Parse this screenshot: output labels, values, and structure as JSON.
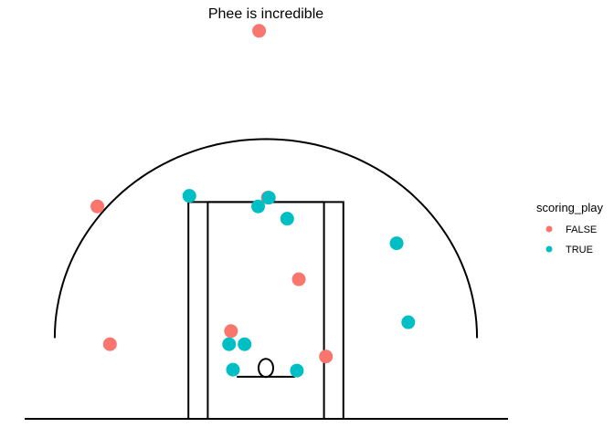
{
  "chart_data": {
    "type": "scatter",
    "title": "Phee is incredible",
    "xlabel": "",
    "ylabel": "",
    "xlim": [
      -25,
      25
    ],
    "ylim": [
      0,
      47
    ],
    "grid": false,
    "legend": {
      "title": "scoring_play",
      "placement": "right",
      "entries": [
        {
          "label": "FALSE",
          "color": "#F8766D"
        },
        {
          "label": "TRUE",
          "color": "#00BFC4"
        }
      ]
    },
    "series": [
      {
        "name": "FALSE",
        "color": "#F8766D",
        "points": [
          {
            "x": -0.7,
            "y": 44.2
          },
          {
            "x": -17.4,
            "y": 24.2
          },
          {
            "x": 0.2,
            "y": 25.2
          },
          {
            "x": 3.4,
            "y": 15.9
          },
          {
            "x": -3.6,
            "y": 10.0
          },
          {
            "x": -16.1,
            "y": 8.5
          },
          {
            "x": 6.2,
            "y": 7.1
          }
        ]
      },
      {
        "name": "TRUE",
        "color": "#00BFC4",
        "points": [
          {
            "x": -7.9,
            "y": 25.4
          },
          {
            "x": 0.3,
            "y": 25.2
          },
          {
            "x": -0.8,
            "y": 24.2
          },
          {
            "x": 2.2,
            "y": 22.8
          },
          {
            "x": 13.5,
            "y": 20.0
          },
          {
            "x": 14.7,
            "y": 11.0
          },
          {
            "x": -3.8,
            "y": 8.5
          },
          {
            "x": -2.2,
            "y": 8.5
          },
          {
            "x": -3.4,
            "y": 5.6
          },
          {
            "x": 3.2,
            "y": 5.5
          }
        ]
      }
    ],
    "annotations": {
      "court_lines": true
    }
  }
}
